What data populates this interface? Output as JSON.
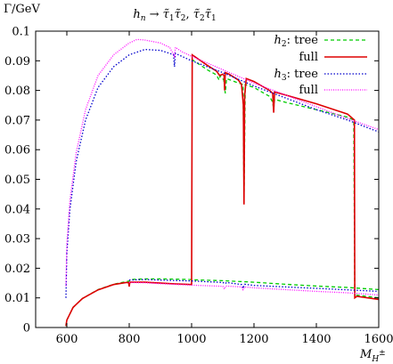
{
  "chart_data": {
    "type": "line",
    "title": "h_n → τ̃₁τ̃₂, τ̃₂τ̃₁",
    "title_parts": {
      "h": "h",
      "n": "n",
      "arrow": " → ",
      "t": "τ̃",
      "one": "1",
      "two": "2",
      "sep": ", "
    },
    "ylabel": "Γ/GeV",
    "xlabel": "M_{H±}",
    "xlabel_parts": {
      "M": "M",
      "sub": "H",
      "sup": "±"
    },
    "xlim": [
      500,
      1600
    ],
    "ylim": [
      0,
      0.1
    ],
    "xticks": [
      600,
      800,
      1000,
      1200,
      1400,
      1600
    ],
    "yticks": [
      0,
      0.01,
      0.02,
      0.03,
      0.04,
      0.05,
      0.06,
      0.07,
      0.08,
      0.09,
      0.1
    ],
    "xtick_labels": [
      "600",
      "800",
      "1000",
      "1200",
      "1400",
      "1600"
    ],
    "ytick_labels": [
      "0",
      "0.01",
      "0.02",
      "0.03",
      "0.04",
      "0.05",
      "0.06",
      "0.07",
      "0.08",
      "0.09",
      "0.1"
    ],
    "legend_position": "top-right",
    "legend": [
      {
        "label_italic": "h",
        "label_sub": "2",
        "label_rest": ": tree",
        "color": "#00cc00",
        "dash": "dashed"
      },
      {
        "label_italic": "",
        "label_sub": "",
        "label_rest": "full",
        "color": "#dd0000",
        "dash": "solid"
      },
      {
        "label_italic": "h",
        "label_sub": "3",
        "label_rest": ": tree",
        "color": "#0000cc",
        "dash": "dotted"
      },
      {
        "label_italic": "",
        "label_sub": "",
        "label_rest": "full",
        "color": "#ff00ff",
        "dash": "dotted"
      }
    ],
    "series": [
      {
        "name": "h2: tree",
        "color": "#00cc00",
        "dash": "dashed",
        "points": [
          [
            597,
            0.0005
          ],
          [
            600,
            0.0025
          ],
          [
            620,
            0.0068
          ],
          [
            650,
            0.0098
          ],
          [
            700,
            0.0128
          ],
          [
            750,
            0.0146
          ],
          [
            800,
            0.0157
          ],
          [
            802,
            0.0162
          ],
          [
            850,
            0.0164
          ],
          [
            900,
            0.0164
          ],
          [
            950,
            0.0163
          ],
          [
            1000,
            0.0162
          ],
          [
            1005,
            0.0161
          ],
          [
            1100,
            0.0158
          ],
          [
            1200,
            0.0153
          ],
          [
            1300,
            0.0146
          ],
          [
            1400,
            0.014
          ],
          [
            1500,
            0.0135
          ],
          [
            1600,
            0.0128
          ],
          null,
          [
            1000,
            0.0905
          ],
          [
            1050,
            0.087
          ],
          [
            1080,
            0.0852
          ],
          [
            1088,
            0.0835
          ],
          [
            1092,
            0.085
          ],
          [
            1103,
            0.0835
          ],
          [
            1108,
            0.079
          ],
          [
            1112,
            0.084
          ],
          [
            1150,
            0.0825
          ],
          [
            1165,
            0.082
          ],
          [
            1168,
            0.0435
          ],
          [
            1172,
            0.082
          ],
          [
            1200,
            0.081
          ],
          [
            1250,
            0.078
          ],
          [
            1260,
            0.076
          ],
          [
            1263,
            0.0735
          ],
          [
            1266,
            0.077
          ],
          [
            1300,
            0.076
          ],
          [
            1400,
            0.0735
          ],
          [
            1500,
            0.071
          ],
          [
            1520,
            0.07
          ],
          [
            1523,
            0.011
          ],
          [
            1600,
            0.01
          ]
        ]
      },
      {
        "name": "full",
        "color": "#dd0000",
        "dash": "solid",
        "points": [
          [
            597,
            0.0005
          ],
          [
            600,
            0.0025
          ],
          [
            620,
            0.0068
          ],
          [
            650,
            0.0098
          ],
          [
            700,
            0.0127
          ],
          [
            750,
            0.0145
          ],
          [
            790,
            0.0152
          ],
          [
            798,
            0.0152
          ],
          [
            800,
            0.0138
          ],
          [
            802,
            0.0153
          ],
          [
            850,
            0.0153
          ],
          [
            900,
            0.015
          ],
          [
            950,
            0.0147
          ],
          [
            1000,
            0.0145
          ],
          [
            1002,
            0.092
          ],
          [
            1050,
            0.0885
          ],
          [
            1080,
            0.0865
          ],
          [
            1090,
            0.085
          ],
          [
            1100,
            0.0855
          ],
          [
            1104,
            0.085
          ],
          [
            1106,
            0.08
          ],
          [
            1108,
            0.086
          ],
          [
            1120,
            0.0855
          ],
          [
            1150,
            0.0835
          ],
          [
            1160,
            0.082
          ],
          [
            1166,
            0.075
          ],
          [
            1168,
            0.0415
          ],
          [
            1170,
            0.078
          ],
          [
            1175,
            0.084
          ],
          [
            1200,
            0.083
          ],
          [
            1250,
            0.08
          ],
          [
            1260,
            0.079
          ],
          [
            1263,
            0.0725
          ],
          [
            1266,
            0.0795
          ],
          [
            1300,
            0.0785
          ],
          [
            1400,
            0.0755
          ],
          [
            1500,
            0.072
          ],
          [
            1522,
            0.07
          ],
          [
            1523,
            0.01
          ],
          [
            1530,
            0.0105
          ],
          [
            1600,
            0.0095
          ]
        ]
      },
      {
        "name": "h3: tree",
        "color": "#0000cc",
        "dash": "dotted",
        "points": [
          [
            597,
            0.01
          ],
          [
            600,
            0.025
          ],
          [
            610,
            0.04
          ],
          [
            630,
            0.056
          ],
          [
            660,
            0.07
          ],
          [
            700,
            0.081
          ],
          [
            750,
            0.088
          ],
          [
            800,
            0.092
          ],
          [
            850,
            0.0938
          ],
          [
            900,
            0.0935
          ],
          [
            930,
            0.0925
          ],
          [
            942,
            0.092
          ],
          [
            945,
            0.088
          ],
          [
            948,
            0.0925
          ],
          [
            1000,
            0.09
          ],
          [
            1100,
            0.086
          ],
          [
            1200,
            0.0815
          ],
          [
            1300,
            0.0775
          ],
          [
            1400,
            0.0735
          ],
          [
            1500,
            0.07
          ],
          [
            1600,
            0.066
          ],
          null,
          [
            800,
            0.016
          ],
          [
            850,
            0.0162
          ],
          [
            900,
            0.016
          ],
          [
            1000,
            0.0157
          ],
          [
            1100,
            0.0152
          ],
          [
            1108,
            0.0148
          ],
          [
            1112,
            0.0152
          ],
          [
            1160,
            0.0145
          ],
          [
            1165,
            0.0132
          ],
          [
            1170,
            0.0146
          ],
          [
            1200,
            0.0142
          ],
          [
            1300,
            0.0137
          ],
          [
            1400,
            0.0132
          ],
          [
            1500,
            0.0127
          ],
          [
            1600,
            0.0122
          ]
        ]
      },
      {
        "name": "full",
        "color": "#ff00ff",
        "dash": "dotted",
        "points": [
          [
            597,
            0.014
          ],
          [
            600,
            0.028
          ],
          [
            610,
            0.043
          ],
          [
            630,
            0.059
          ],
          [
            660,
            0.0735
          ],
          [
            700,
            0.085
          ],
          [
            750,
            0.092
          ],
          [
            800,
            0.096
          ],
          [
            825,
            0.0972
          ],
          [
            850,
            0.097
          ],
          [
            900,
            0.096
          ],
          [
            930,
            0.0945
          ],
          [
            945,
            0.0915
          ],
          [
            948,
            0.0945
          ],
          [
            970,
            0.093
          ],
          [
            1000,
            0.0915
          ],
          [
            1100,
            0.087
          ],
          [
            1200,
            0.0825
          ],
          [
            1300,
            0.0785
          ],
          [
            1400,
            0.0745
          ],
          [
            1500,
            0.0705
          ],
          [
            1600,
            0.0668
          ],
          null,
          [
            800,
            0.0152
          ],
          [
            850,
            0.0151
          ],
          [
            900,
            0.0148
          ],
          [
            1000,
            0.0143
          ],
          [
            1100,
            0.0139
          ],
          [
            1105,
            0.013
          ],
          [
            1110,
            0.014
          ],
          [
            1160,
            0.0137
          ],
          [
            1165,
            0.0128
          ],
          [
            1170,
            0.0137
          ],
          [
            1200,
            0.0134
          ],
          [
            1300,
            0.0128
          ],
          [
            1400,
            0.0122
          ],
          [
            1500,
            0.0117
          ],
          [
            1600,
            0.011
          ]
        ]
      }
    ]
  }
}
